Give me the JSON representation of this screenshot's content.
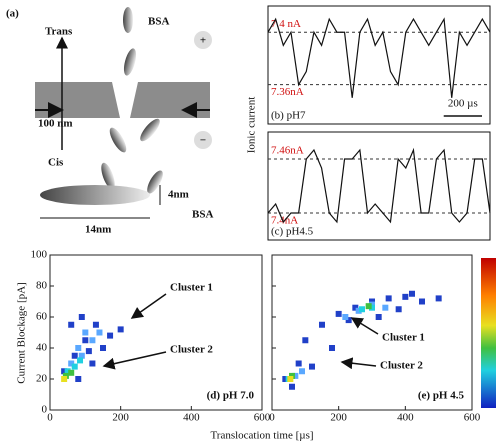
{
  "schematic": {
    "label": "(a)",
    "trans": "Trans",
    "cis": "Cis",
    "bsa_top": "BSA",
    "plus": "+",
    "minus": "−",
    "scale": "100 nm",
    "height": "4nm",
    "length": "14nm",
    "bsa_bottom": "BSA"
  },
  "chart_data": [
    {
      "type": "line",
      "ylabel": "Ionic current",
      "panel_label": "(b) pH7",
      "x": [
        0,
        40,
        80,
        120,
        160,
        200,
        240,
        280,
        320,
        360,
        400,
        440,
        480,
        520,
        560,
        600,
        640,
        680,
        720,
        760,
        800,
        840,
        880,
        920,
        960,
        1000,
        1040,
        1080,
        1120,
        1160
      ],
      "values": [
        7.4,
        7.41,
        7.39,
        7.4,
        7.36,
        7.37,
        7.4,
        7.39,
        7.41,
        7.4,
        7.4,
        7.35,
        7.4,
        7.41,
        7.39,
        7.4,
        7.37,
        7.36,
        7.4,
        7.41,
        7.4,
        7.39,
        7.4,
        7.41,
        7.35,
        7.4,
        7.39,
        7.4,
        7.41,
        7.4
      ],
      "color": "#111111",
      "xlim": [
        0,
        1160
      ],
      "ylim": [
        7.33,
        7.42
      ],
      "levels": [
        {
          "value": 7.4,
          "label": "7.4 nA"
        },
        {
          "value": 7.36,
          "label": "7.36nA"
        }
      ],
      "scalebar": {
        "value": 200,
        "label": "200 µs"
      }
    },
    {
      "type": "line",
      "panel_label": "(c) pH4.5",
      "x": [
        0,
        40,
        80,
        120,
        160,
        200,
        240,
        280,
        320,
        360,
        400,
        440,
        480,
        520,
        560,
        600,
        640,
        680,
        720,
        760,
        800,
        840,
        880,
        920,
        960,
        1000,
        1040,
        1080,
        1120,
        1160
      ],
      "values": [
        7.4,
        7.41,
        7.39,
        7.4,
        7.4,
        7.46,
        7.47,
        7.45,
        7.4,
        7.39,
        7.46,
        7.46,
        7.47,
        7.4,
        7.41,
        7.4,
        7.39,
        7.46,
        7.45,
        7.47,
        7.4,
        7.4,
        7.46,
        7.47,
        7.4,
        7.39,
        7.4,
        7.46,
        7.46,
        7.4
      ],
      "color": "#111111",
      "xlim": [
        0,
        1160
      ],
      "ylim": [
        7.37,
        7.49
      ],
      "levels": [
        {
          "value": 7.46,
          "label": "7.46nA"
        },
        {
          "value": 7.4,
          "label": "7.4nA"
        }
      ]
    },
    {
      "type": "scatter",
      "ylabel": "Current Blockage [pA]",
      "xlabel": "Translocation time [µs]",
      "panel_label": "(d) pH 7.0",
      "annotations": [
        "Cluster 1",
        "Cluster 2"
      ],
      "xlim": [
        0,
        600
      ],
      "ylim": [
        0,
        100
      ],
      "xticks": [
        0,
        200,
        400,
        600
      ],
      "yticks": [
        0,
        20,
        40,
        60,
        80,
        100
      ],
      "series": [
        {
          "color": "#2040c8",
          "x": [
            40,
            70,
            100,
            130,
            150,
            60,
            120,
            90,
            170,
            200,
            80,
            110
          ],
          "values": [
            25,
            35,
            45,
            55,
            40,
            55,
            30,
            60,
            48,
            52,
            20,
            38
          ]
        },
        {
          "color": "#5aa8ff",
          "x": [
            60,
            80,
            100,
            120,
            90,
            140
          ],
          "values": [
            30,
            40,
            50,
            45,
            35,
            50
          ]
        },
        {
          "color": "#20d0e0",
          "x": [
            50,
            70,
            85
          ],
          "values": [
            25,
            28,
            32
          ]
        },
        {
          "color": "#40c040",
          "x": [
            45,
            60
          ],
          "values": [
            22,
            24
          ]
        },
        {
          "color": "#e8e020",
          "x": [
            40
          ],
          "values": [
            20
          ]
        }
      ]
    },
    {
      "type": "scatter",
      "panel_label": "(e) pH 4.5",
      "annotations": [
        "Cluster 1",
        "Cluster 2"
      ],
      "xlim": [
        0,
        600
      ],
      "ylim": [
        0,
        100
      ],
      "xticks": [
        0,
        200,
        400,
        600
      ],
      "yticks": [
        0,
        20,
        40,
        60,
        80,
        100
      ],
      "series": [
        {
          "color": "#2040c8",
          "x": [
            40,
            80,
            100,
            150,
            200,
            250,
            300,
            350,
            400,
            450,
            180,
            230,
            320,
            60,
            120,
            420,
            500,
            380
          ],
          "values": [
            20,
            30,
            45,
            55,
            62,
            66,
            70,
            72,
            73,
            70,
            40,
            58,
            60,
            15,
            28,
            75,
            72,
            65
          ]
        },
        {
          "color": "#5aa8ff",
          "x": [
            220,
            260,
            300,
            340,
            70,
            90
          ],
          "values": [
            60,
            64,
            68,
            66,
            22,
            25
          ]
        },
        {
          "color": "#20d0e0",
          "x": [
            270,
            300,
            50
          ],
          "values": [
            65,
            66,
            20
          ]
        },
        {
          "color": "#40c040",
          "x": [
            290,
            60
          ],
          "values": [
            67,
            22
          ]
        },
        {
          "color": "#e8e020",
          "x": [
            55
          ],
          "values": [
            20
          ]
        }
      ]
    }
  ]
}
